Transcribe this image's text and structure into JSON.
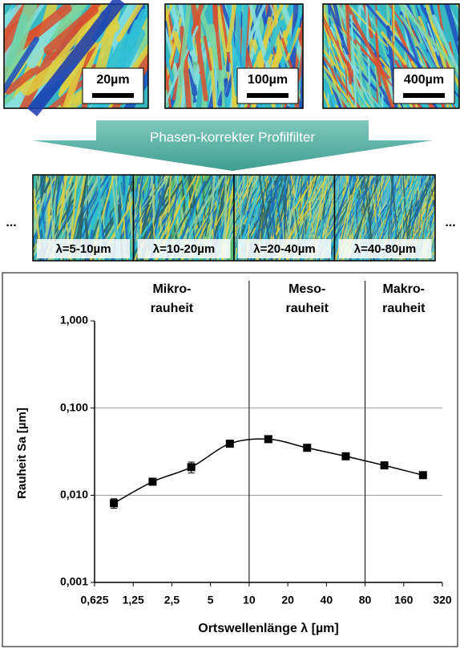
{
  "figure": {
    "scales": [
      "20µm",
      "100µm",
      "400µm"
    ],
    "filter_label": "Phasen-korrekter Profilfilter",
    "ellipsis_left": "...",
    "ellipsis_right": "...",
    "bands": [
      "λ=5-10µm",
      "λ=10-20µm",
      "λ=20-40µm",
      "λ=40-80µm"
    ]
  },
  "chart_data": {
    "type": "line",
    "x_label": "Ortswellenlänge λ [µm]",
    "y_label": "Rauheit Sa [µm]",
    "x": [
      0.884,
      1.77,
      3.54,
      7.07,
      14.1,
      28.3,
      56.6,
      113,
      226
    ],
    "values": [
      0.0081,
      0.0143,
      0.021,
      0.039,
      0.044,
      0.035,
      0.028,
      0.022,
      0.017
    ],
    "errors": [
      0.001,
      0.001,
      0.003,
      0.002,
      0.002,
      0.002,
      0.002,
      0.001,
      0.001
    ],
    "color": "#000000",
    "xscale": "log",
    "yscale": "log",
    "xlim": [
      0.625,
      320
    ],
    "xticks": [
      {
        "value": 0.625,
        "label": "0,625"
      },
      {
        "value": 1.25,
        "label": "1,25"
      },
      {
        "value": 2.5,
        "label": "2,5"
      },
      5,
      10,
      20,
      40,
      80,
      160,
      320
    ],
    "ylim": [
      0.001,
      1
    ],
    "yticks": [
      {
        "value": 0.001,
        "label": "0,001"
      },
      {
        "value": 0.01,
        "label": "0,010"
      },
      {
        "value": 0.1,
        "label": "0,100"
      },
      {
        "value": 1,
        "label": "1,000"
      }
    ],
    "region_bounds": [
      10,
      80
    ],
    "regions": [
      [
        "Mikro-",
        "rauheit"
      ],
      [
        "Meso-",
        "rauheit"
      ],
      [
        "Makro-",
        "rauheit"
      ]
    ],
    "grid": true
  }
}
